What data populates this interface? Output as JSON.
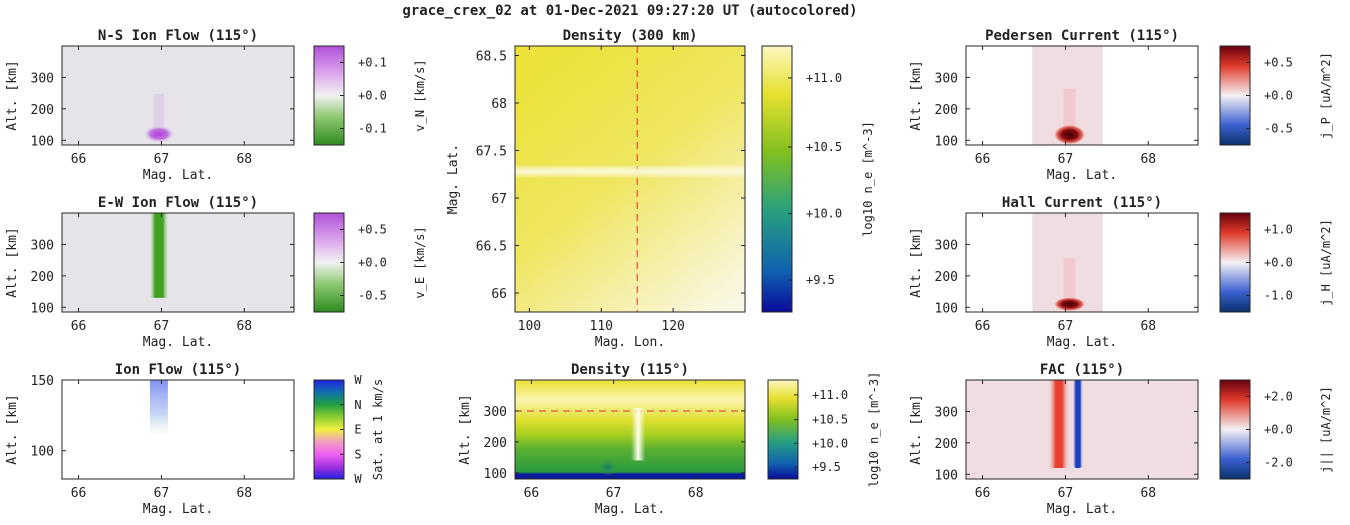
{
  "title": "grace_crex_02 at 01-Dec-2021 09:27:20 UT (autocolored)",
  "chart_data": [
    {
      "id": "ns",
      "type": "heatmap",
      "title": "N-S Ion Flow (115°)",
      "xlabel": "Mag. Lat.",
      "ylabel": "Alt. [km]",
      "xlim": [
        65.8,
        68.6
      ],
      "ylim": [
        85,
        400
      ],
      "xticks": [
        "66",
        "67",
        "68"
      ],
      "yticks": [
        "100",
        "200",
        "300"
      ],
      "features": [
        {
          "kind": "blob",
          "x": 66.97,
          "y": 120,
          "value": 1.0
        }
      ],
      "colorbar": {
        "label": "v_N [km/s]",
        "ticks": [
          "+0.1",
          "+0.0",
          "-0.1"
        ],
        "map": "green-white-violet"
      }
    },
    {
      "id": "ew",
      "type": "heatmap",
      "title": "E-W Ion Flow (115°)",
      "xlabel": "Mag. Lat.",
      "ylabel": "Alt. [km]",
      "xlim": [
        65.8,
        68.6
      ],
      "ylim": [
        85,
        400
      ],
      "xticks": [
        "66",
        "67",
        "68"
      ],
      "yticks": [
        "100",
        "200",
        "300"
      ],
      "features": [
        {
          "kind": "column",
          "x": 66.97,
          "y_from": 130,
          "y_to": 400,
          "value": -1.0
        }
      ],
      "colorbar": {
        "label": "v_E [km/s]",
        "ticks": [
          "+0.5",
          "+0.0",
          "-0.5"
        ],
        "map": "green-white-violet"
      }
    },
    {
      "id": "ionflow",
      "type": "heatmap",
      "title": "Ion Flow (115°)",
      "xlabel": "Mag. Lat.",
      "ylabel": "Alt. [km]",
      "xlim": [
        65.8,
        68.6
      ],
      "ylim": [
        80,
        150
      ],
      "xticks": [
        "66",
        "67",
        "68"
      ],
      "yticks": [
        "100",
        "150"
      ],
      "features": [
        {
          "kind": "column",
          "x": 66.97,
          "y_from": 110,
          "y_to": 150,
          "value": "W"
        }
      ],
      "colorbar": {
        "label": "Sat. at 1 km/s",
        "ticks": [
          "W",
          "N",
          "E",
          "S",
          "W"
        ],
        "map": "direction"
      }
    },
    {
      "id": "dens300",
      "type": "heatmap",
      "title": "Density (300 km)",
      "xlabel": "Mag. Lon.",
      "ylabel": "Mag. Lat.",
      "xlim": [
        98,
        130
      ],
      "ylim": [
        65.8,
        68.6
      ],
      "xticks": [
        "100",
        "110",
        "120"
      ],
      "yticks": [
        "66",
        "66.5",
        "67",
        "67.5",
        "68",
        "68.5"
      ],
      "features": [
        {
          "kind": "vline",
          "x": 115
        },
        {
          "kind": "hband",
          "y": 67.28
        }
      ],
      "colorbar": {
        "label": "log10 n_e [m^-3]",
        "ticks": [
          "+11.0",
          "+10.5",
          "+10.0",
          "+9.5"
        ],
        "map": "blue-green-yellow"
      }
    },
    {
      "id": "densalt",
      "type": "heatmap",
      "title": "Density (115°)",
      "xlabel": "Mag. Lat.",
      "ylabel": "Alt. [km]",
      "xlim": [
        65.8,
        68.6
      ],
      "ylim": [
        80,
        400
      ],
      "xticks": [
        "66",
        "67",
        "68"
      ],
      "yticks": [
        "100",
        "200",
        "300"
      ],
      "features": [
        {
          "kind": "hline",
          "y": 300
        },
        {
          "kind": "column",
          "x": 67.3,
          "y_from": 140,
          "y_to": 310
        }
      ],
      "colorbar": {
        "label": "log10 n_e [m^-3]",
        "ticks": [
          "+11.0",
          "+10.5",
          "+10.0",
          "+9.5"
        ],
        "map": "blue-green-yellow"
      }
    },
    {
      "id": "ped",
      "type": "heatmap",
      "title": "Pedersen Current (115°)",
      "xlabel": "Mag. Lat.",
      "ylabel": "Alt. [km]",
      "xlim": [
        65.8,
        68.6
      ],
      "ylim": [
        85,
        400
      ],
      "xticks": [
        "66",
        "67",
        "68"
      ],
      "yticks": [
        "100",
        "200",
        "300"
      ],
      "features": [
        {
          "kind": "blob",
          "x": 67.05,
          "y": 118,
          "value": 1.0
        }
      ],
      "colorbar": {
        "label": "j_P [uA/m^2]",
        "ticks": [
          "+0.5",
          "+0.0",
          "-0.5"
        ],
        "map": "blue-white-red"
      }
    },
    {
      "id": "hall",
      "type": "heatmap",
      "title": "Hall Current (115°)",
      "xlabel": "Mag. Lat.",
      "ylabel": "Alt. [km]",
      "xlim": [
        65.8,
        68.6
      ],
      "ylim": [
        85,
        400
      ],
      "xticks": [
        "66",
        "67",
        "68"
      ],
      "yticks": [
        "100",
        "200",
        "300"
      ],
      "features": [
        {
          "kind": "blob",
          "x": 67.05,
          "y": 110,
          "value": 1.0
        }
      ],
      "colorbar": {
        "label": "j_H [uA/m^2]",
        "ticks": [
          "+1.0",
          "+0.0",
          "-1.0"
        ],
        "map": "blue-white-red"
      }
    },
    {
      "id": "fac",
      "type": "heatmap",
      "title": "FAC (115°)",
      "xlabel": "Mag. Lat.",
      "ylabel": "Alt. [km]",
      "xlim": [
        65.8,
        68.6
      ],
      "ylim": [
        85,
        400
      ],
      "xticks": [
        "66",
        "67",
        "68"
      ],
      "yticks": [
        "100",
        "200",
        "300"
      ],
      "features": [
        {
          "kind": "column",
          "x": 66.92,
          "value": 1.0
        },
        {
          "kind": "column",
          "x": 67.15,
          "value": -1.0
        }
      ],
      "colorbar": {
        "label": "j|| [uA/m^2]",
        "ticks": [
          "+2.0",
          "+0.0",
          "-2.0"
        ],
        "map": "blue-white-red"
      }
    }
  ]
}
